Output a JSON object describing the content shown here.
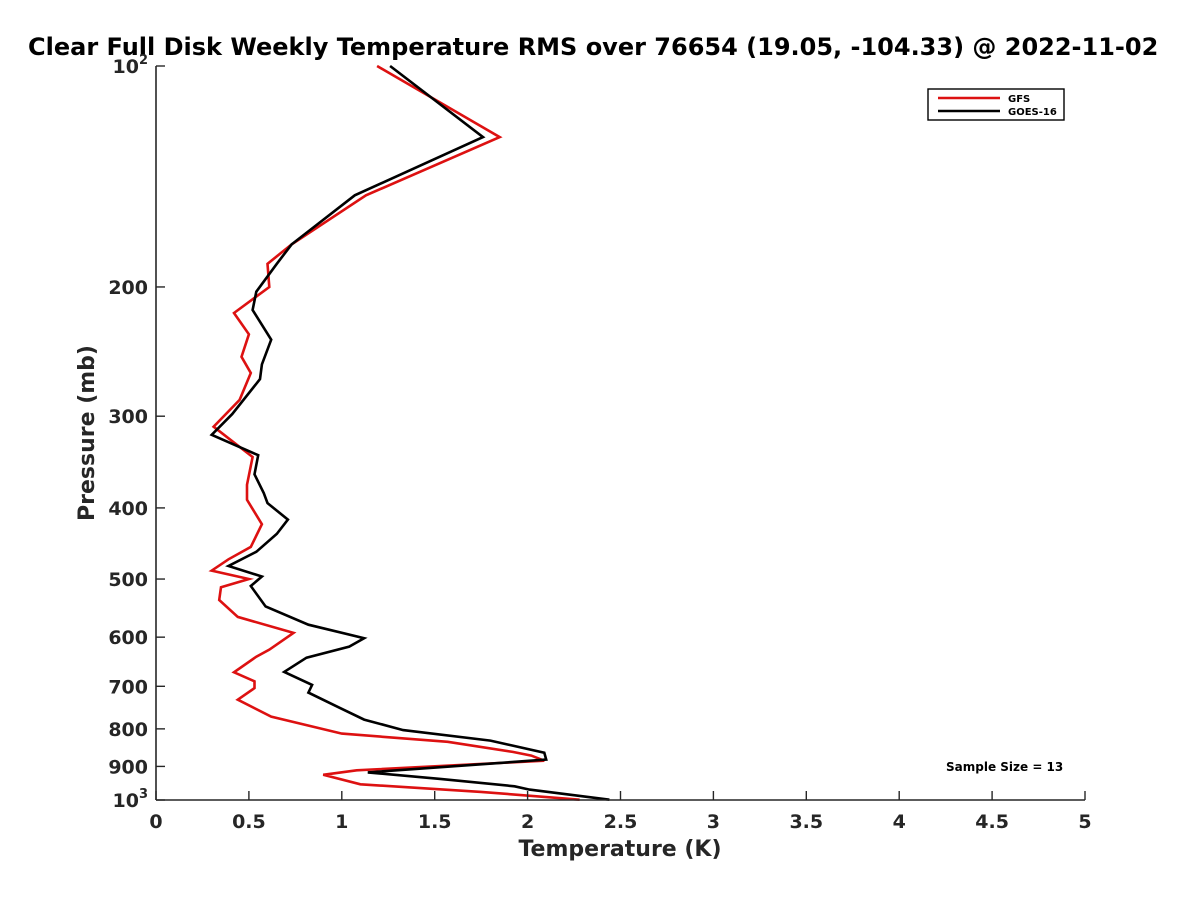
{
  "chart_data": {
    "type": "line",
    "title": "Clear Full Disk Weekly Temperature RMS over 76654 (19.05, -104.33) @ 2022-11-02",
    "xlabel": "Temperature (K)",
    "ylabel": "Pressure (mb)",
    "xlim": [
      0,
      5
    ],
    "ylim": [
      100,
      1000
    ],
    "y_scale": "log",
    "y_reversed": true,
    "x_ticks": [
      "0",
      "0.5",
      "1",
      "1.5",
      "2",
      "2.5",
      "3",
      "3.5",
      "4",
      "4.5",
      "5"
    ],
    "y_ticks": [
      {
        "value": 100,
        "label": "10",
        "sup": "2"
      },
      {
        "value": 200,
        "label": "200",
        "sup": ""
      },
      {
        "value": 300,
        "label": "300",
        "sup": ""
      },
      {
        "value": 400,
        "label": "400",
        "sup": ""
      },
      {
        "value": 500,
        "label": "500",
        "sup": ""
      },
      {
        "value": 600,
        "label": "600",
        "sup": ""
      },
      {
        "value": 700,
        "label": "700",
        "sup": ""
      },
      {
        "value": 800,
        "label": "800",
        "sup": ""
      },
      {
        "value": 900,
        "label": "900",
        "sup": ""
      },
      {
        "value": 1000,
        "label": "10",
        "sup": "3"
      }
    ],
    "grid": false,
    "legend_position": "top-right",
    "annotation": "Sample Size = 13",
    "series": [
      {
        "name": "GFS",
        "color": "#dd1111",
        "points": [
          [
            1.19,
            100
          ],
          [
            1.85,
            125
          ],
          [
            1.13,
            150
          ],
          [
            0.73,
            175
          ],
          [
            0.6,
            186
          ],
          [
            0.61,
            200
          ],
          [
            0.42,
            217
          ],
          [
            0.5,
            232
          ],
          [
            0.46,
            249
          ],
          [
            0.51,
            262
          ],
          [
            0.45,
            285
          ],
          [
            0.31,
            310
          ],
          [
            0.52,
            341
          ],
          [
            0.49,
            372
          ],
          [
            0.49,
            390
          ],
          [
            0.57,
            421
          ],
          [
            0.51,
            452
          ],
          [
            0.39,
            470
          ],
          [
            0.3,
            487
          ],
          [
            0.5,
            500
          ],
          [
            0.35,
            513
          ],
          [
            0.34,
            534
          ],
          [
            0.44,
            563
          ],
          [
            0.74,
            592
          ],
          [
            0.61,
            624
          ],
          [
            0.54,
            638
          ],
          [
            0.42,
            670
          ],
          [
            0.53,
            689
          ],
          [
            0.53,
            704
          ],
          [
            0.44,
            730
          ],
          [
            0.62,
            770
          ],
          [
            1.0,
            812
          ],
          [
            1.57,
            833
          ],
          [
            1.92,
            860
          ],
          [
            2.02,
            870
          ],
          [
            2.09,
            884
          ],
          [
            1.08,
            911
          ],
          [
            0.9,
            924
          ],
          [
            1.1,
            952
          ],
          [
            1.75,
            975
          ],
          [
            2.28,
            999
          ]
        ]
      },
      {
        "name": "GOES-16",
        "color": "#000000",
        "points": [
          [
            1.26,
            100
          ],
          [
            1.76,
            125
          ],
          [
            1.07,
            150
          ],
          [
            0.73,
            175
          ],
          [
            0.65,
            186
          ],
          [
            0.54,
            203
          ],
          [
            0.52,
            215
          ],
          [
            0.62,
            236
          ],
          [
            0.57,
            255
          ],
          [
            0.56,
            267
          ],
          [
            0.41,
            298
          ],
          [
            0.3,
            318
          ],
          [
            0.55,
            339
          ],
          [
            0.53,
            360
          ],
          [
            0.58,
            382
          ],
          [
            0.6,
            394
          ],
          [
            0.71,
            415
          ],
          [
            0.65,
            434
          ],
          [
            0.54,
            459
          ],
          [
            0.39,
            480
          ],
          [
            0.57,
            496
          ],
          [
            0.51,
            511
          ],
          [
            0.59,
            545
          ],
          [
            0.82,
            577
          ],
          [
            1.12,
            602
          ],
          [
            1.04,
            618
          ],
          [
            0.81,
            640
          ],
          [
            0.69,
            669
          ],
          [
            0.84,
            697
          ],
          [
            0.82,
            714
          ],
          [
            0.99,
            749
          ],
          [
            1.12,
            777
          ],
          [
            1.33,
            803
          ],
          [
            1.8,
            830
          ],
          [
            2.09,
            862
          ],
          [
            2.1,
            881
          ],
          [
            1.14,
            917
          ],
          [
            1.53,
            936
          ],
          [
            1.93,
            958
          ],
          [
            2.01,
            968
          ],
          [
            2.44,
            999
          ]
        ]
      }
    ]
  }
}
